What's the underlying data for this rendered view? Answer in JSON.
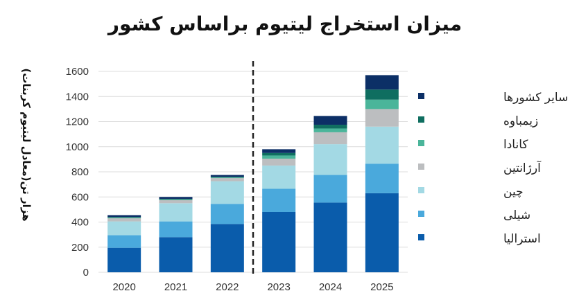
{
  "chart_data": {
    "type": "bar",
    "stacked": true,
    "title": "میزان استخراج لیتیوم براساس کشور",
    "ylabel": "هزار تن(معادل لیتیوم کربنات)",
    "xlabel": "",
    "ylim": [
      0,
      1600
    ],
    "yticks": [
      "0",
      "200",
      "400",
      "600",
      "800",
      "1000",
      "1200",
      "1400",
      "1600"
    ],
    "categories": [
      "2020",
      "2021",
      "2022",
      "2023",
      "2024",
      "2025"
    ],
    "divider_after": "2022",
    "legend_position": "right",
    "series": [
      {
        "name": "استرالیا",
        "color": "#0a5cab",
        "values": [
          195,
          280,
          385,
          480,
          555,
          630
        ]
      },
      {
        "name": "شیلی",
        "color": "#4aa9dc",
        "values": [
          100,
          125,
          160,
          185,
          220,
          235
        ]
      },
      {
        "name": "چین",
        "color": "#a3d9e4",
        "values": [
          110,
          145,
          180,
          185,
          245,
          295
        ]
      },
      {
        "name": "آرژانتین",
        "color": "#bcbec0",
        "values": [
          25,
          25,
          25,
          55,
          95,
          140
        ]
      },
      {
        "name": "کانادا",
        "color": "#4ab59a",
        "values": [
          5,
          5,
          5,
          25,
          30,
          75
        ]
      },
      {
        "name": "زیمباوه",
        "color": "#0f6e60",
        "values": [
          5,
          5,
          5,
          20,
          30,
          80
        ]
      },
      {
        "name": "سایر کشورها",
        "color": "#0c2f66",
        "values": [
          15,
          15,
          15,
          30,
          70,
          115
        ]
      }
    ]
  }
}
